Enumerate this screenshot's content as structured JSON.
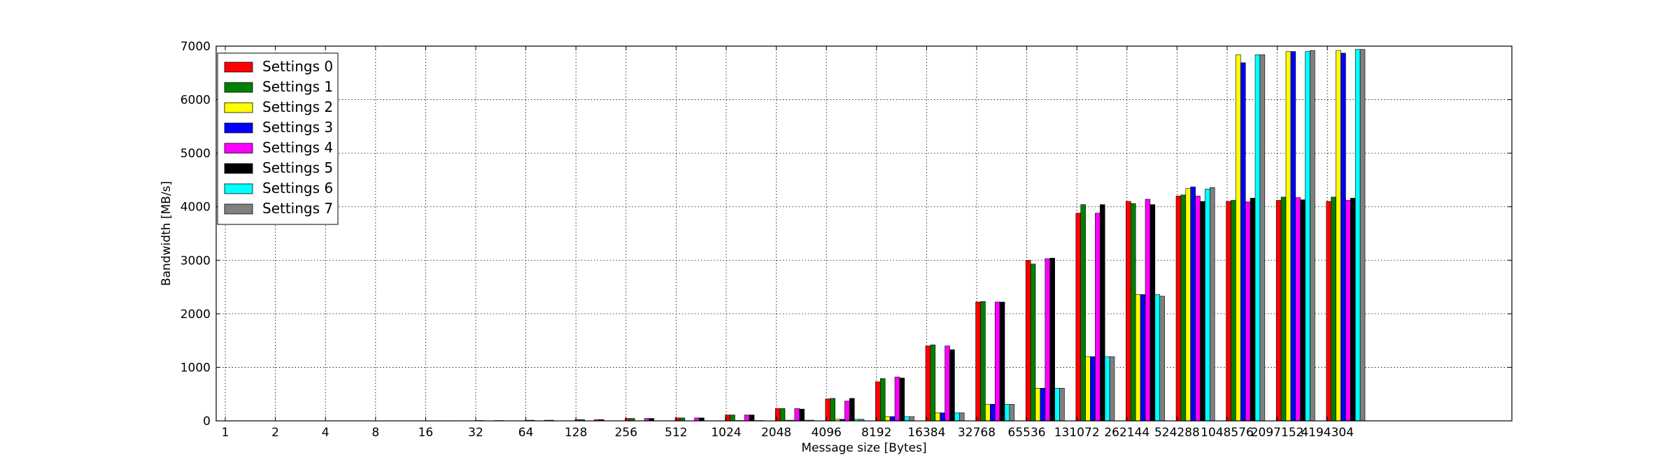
{
  "chart_data": {
    "type": "bar",
    "title": "",
    "xlabel": "Message size [Bytes]",
    "ylabel": "Bandwidth [MB/s]",
    "ylim": [
      0,
      7000
    ],
    "yticks": [
      "0",
      "1000",
      "2000",
      "3000",
      "4000",
      "5000",
      "6000",
      "7000"
    ],
    "categories": [
      "1",
      "2",
      "4",
      "8",
      "16",
      "32",
      "64",
      "128",
      "256",
      "512",
      "1024",
      "2048",
      "4096",
      "8192",
      "16384",
      "32768",
      "65536",
      "131072",
      "262144",
      "524288",
      "1048576",
      "2097152",
      "4194304"
    ],
    "grid": true,
    "legend_position": "top-left",
    "series": [
      {
        "name": "Settings 0",
        "color": "#ff0000",
        "values": [
          0.2,
          0.4,
          0.8,
          1.5,
          3,
          6,
          12,
          24,
          45,
          55,
          110,
          230,
          410,
          730,
          1400,
          2220,
          3000,
          3880,
          4100,
          4200,
          4100,
          4120,
          4100
        ]
      },
      {
        "name": "Settings 1",
        "color": "#008000",
        "values": [
          0.2,
          0.4,
          0.8,
          1.5,
          3,
          6,
          12,
          24,
          45,
          55,
          110,
          230,
          420,
          790,
          1420,
          2230,
          2930,
          4040,
          4060,
          4220,
          4120,
          4180,
          4180
        ]
      },
      {
        "name": "Settings 2",
        "color": "#ffff00",
        "values": [
          0.01,
          0.01,
          0.02,
          0.03,
          0.1,
          0.2,
          0.4,
          1,
          2,
          3,
          6,
          12,
          30,
          80,
          150,
          310,
          610,
          1200,
          2360,
          4340,
          6840,
          6900,
          6920
        ]
      },
      {
        "name": "Settings 3",
        "color": "#0000ff",
        "values": [
          0.01,
          0.01,
          0.02,
          0.03,
          0.1,
          0.2,
          0.4,
          1,
          2,
          3,
          6,
          12,
          30,
          80,
          150,
          310,
          610,
          1200,
          2360,
          4370,
          6690,
          6900,
          6870
        ]
      },
      {
        "name": "Settings 4",
        "color": "#ff00ff",
        "values": [
          0.2,
          0.4,
          0.8,
          1.5,
          3,
          6,
          12,
          24,
          45,
          55,
          110,
          230,
          370,
          820,
          1400,
          2220,
          3030,
          3880,
          4140,
          4200,
          4090,
          4170,
          4120
        ]
      },
      {
        "name": "Settings 5",
        "color": "#000000",
        "values": [
          0.2,
          0.4,
          0.8,
          1.5,
          3,
          6,
          12,
          24,
          45,
          55,
          110,
          220,
          420,
          800,
          1330,
          2220,
          3040,
          4040,
          4040,
          4100,
          4160,
          4130,
          4160
        ]
      },
      {
        "name": "Settings 6",
        "color": "#00ffff",
        "values": [
          0.01,
          0.01,
          0.02,
          0.03,
          0.1,
          0.2,
          0.4,
          1,
          2,
          3,
          6,
          12,
          30,
          80,
          150,
          310,
          610,
          1200,
          2360,
          4330,
          6840,
          6900,
          6940
        ]
      },
      {
        "name": "Settings 7",
        "color": "#808080",
        "values": [
          0.01,
          0.01,
          0.02,
          0.03,
          0.1,
          0.2,
          0.4,
          1,
          2,
          3,
          6,
          12,
          30,
          80,
          150,
          310,
          610,
          1200,
          2330,
          4360,
          6840,
          6920,
          6940
        ]
      }
    ]
  }
}
